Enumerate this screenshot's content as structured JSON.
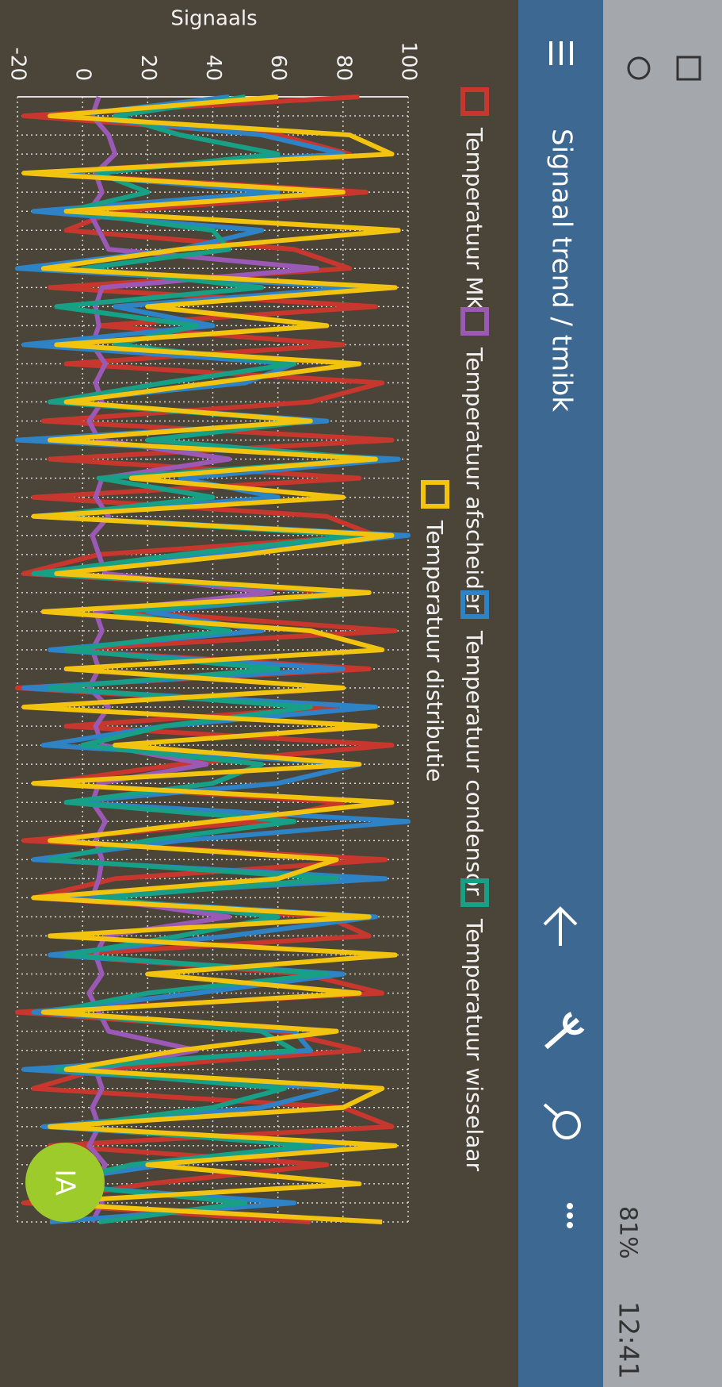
{
  "status_bar": {
    "battery": "81%",
    "time": "12:41"
  },
  "app_bar": {
    "title": "Signaal trend / tmibk"
  },
  "fab": {
    "label": "IA"
  },
  "chart_data": {
    "type": "line",
    "y_label": "Signaals",
    "categories": [
      null,
      null,
      null,
      null,
      null,
      null,
      null,
      null,
      null,
      null,
      null,
      null,
      null,
      null,
      null,
      null,
      null,
      null,
      null,
      null,
      null,
      null,
      null,
      null,
      null,
      null,
      null,
      null,
      null,
      null,
      null,
      null,
      null,
      null,
      null,
      null,
      null,
      null,
      null,
      null,
      null,
      null,
      null,
      null,
      null,
      null,
      null,
      null,
      null,
      null,
      null,
      null,
      null,
      null,
      null,
      null,
      null,
      null,
      null,
      null
    ],
    "ylim": [
      -20,
      100
    ],
    "yticks": [
      -20,
      0,
      20,
      40,
      60,
      80,
      100
    ],
    "grid": true,
    "series": [
      {
        "name": "Temperatuur MK",
        "color": "#c8372d",
        "values": [
          85,
          -18,
          60,
          82,
          -15,
          87,
          10,
          -5,
          65,
          82,
          -10,
          90,
          5,
          80,
          -5,
          92,
          70,
          -12,
          95,
          -10,
          85,
          -15,
          75,
          90,
          5,
          -18,
          82,
          15,
          96,
          -8,
          88,
          -20,
          78,
          -5,
          95,
          30,
          -12,
          80,
          55,
          -18,
          93,
          10,
          -15,
          75,
          88,
          -8,
          68,
          92,
          -20,
          60,
          85,
          5,
          -15,
          80,
          95,
          -10,
          75,
          20,
          -18,
          70
        ]
      },
      {
        "name": "Temperatuur afscheider",
        "color": "#9b59b6",
        "values": [
          5,
          3,
          8,
          10,
          4,
          6,
          2,
          5,
          8,
          72,
          6,
          4,
          5,
          3,
          7,
          4,
          6,
          2,
          5,
          45,
          6,
          4,
          8,
          3,
          5,
          7,
          58,
          4,
          6,
          3,
          5,
          2,
          8,
          4,
          6,
          38,
          5,
          3,
          7,
          4,
          6,
          5,
          3,
          45,
          7,
          4,
          6,
          2,
          5,
          8,
          35,
          4,
          6,
          3,
          5,
          2,
          7,
          4,
          6,
          3
        ]
      },
      {
        "name": "Temperatuur condensor",
        "color": "#2d83c5",
        "values": [
          45,
          -5,
          55,
          80,
          -10,
          60,
          -15,
          55,
          30,
          -20,
          85,
          10,
          40,
          -18,
          65,
          50,
          -10,
          75,
          -20,
          97,
          30,
          60,
          -15,
          100,
          40,
          -15,
          85,
          20,
          55,
          -10,
          80,
          -18,
          90,
          25,
          -12,
          85,
          60,
          -5,
          100,
          30,
          -15,
          93,
          -8,
          90,
          45,
          -10,
          80,
          35,
          -15,
          65,
          70,
          -18,
          78,
          55,
          -12,
          80,
          25,
          -15,
          65,
          -10
        ]
      },
      {
        "name": "Temperatuur wisselaar",
        "color": "#17a085",
        "values": [
          50,
          10,
          30,
          60,
          5,
          20,
          -5,
          40,
          45,
          0,
          55,
          -8,
          35,
          10,
          65,
          25,
          -10,
          70,
          20,
          90,
          5,
          40,
          -12,
          85,
          30,
          -15,
          88,
          10,
          45,
          -5,
          60,
          -10,
          70,
          25,
          0,
          55,
          40,
          -5,
          65,
          20,
          -10,
          78,
          5,
          60,
          30,
          -5,
          75,
          20,
          -10,
          55,
          65,
          -8,
          62,
          40,
          -5,
          70,
          15,
          -10,
          50,
          5
        ]
      },
      {
        "name": "Temperatuur distributie",
        "color": "#f2c40f",
        "values": [
          60,
          -10,
          82,
          95,
          -18,
          80,
          -5,
          97,
          30,
          -12,
          96,
          20,
          75,
          -8,
          85,
          40,
          -5,
          70,
          -10,
          90,
          15,
          80,
          -15,
          95,
          50,
          -8,
          88,
          -12,
          70,
          92,
          -5,
          80,
          -18,
          90,
          10,
          85,
          -15,
          95,
          40,
          -10,
          78,
          60,
          -15,
          88,
          -10,
          96,
          20,
          85,
          -12,
          78,
          30,
          -5,
          92,
          80,
          -10,
          96,
          20,
          85,
          -15,
          92
        ]
      }
    ]
  }
}
